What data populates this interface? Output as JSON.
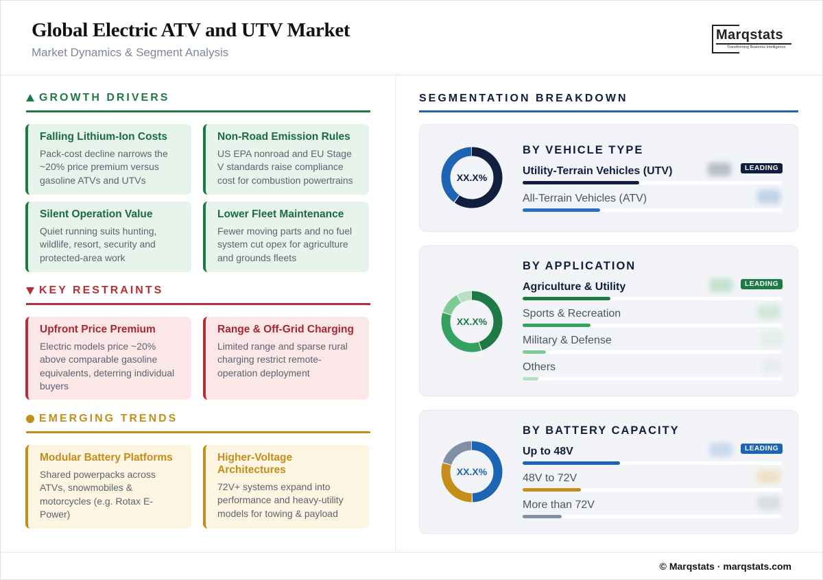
{
  "header": {
    "title": "Global Electric ATV and UTV Market",
    "subtitle": "Market Dynamics & Segment Analysis"
  },
  "logo": {
    "name": "Marqstats",
    "tagline": "Transforming Business Intelligence"
  },
  "drivers": {
    "heading": "GROWTH DRIVERS",
    "items": [
      {
        "title": "Falling Lithium-Ion Costs",
        "text": "Pack-cost decline narrows the ~20% price premium versus gasoline ATVs and UTVs"
      },
      {
        "title": "Non-Road Emission Rules",
        "text": "US EPA nonroad and EU Stage V standards raise compliance cost for combustion powertrains"
      },
      {
        "title": "Silent Operation Value",
        "text": "Quiet running suits hunting, wildlife, resort, security and protected-area work"
      },
      {
        "title": "Lower Fleet Maintenance",
        "text": "Fewer moving parts and no fuel system cut opex for agriculture and grounds fleets"
      }
    ]
  },
  "restraints": {
    "heading": "KEY RESTRAINTS",
    "items": [
      {
        "title": "Upfront Price Premium",
        "text": "Electric models price ~20% above comparable gasoline equivalents, deterring individual buyers"
      },
      {
        "title": "Range & Off-Grid Charging",
        "text": "Limited range and sparse rural charging restrict remote-operation deployment"
      }
    ]
  },
  "trends": {
    "heading": "EMERGING TRENDS",
    "items": [
      {
        "title": "Modular Battery Platforms",
        "text": "Shared powerpacks across ATVs, snowmobiles & motorcycles (e.g. Rotax E-Power)"
      },
      {
        "title": "Higher-Voltage Architectures",
        "text": "72V+ systems expand into performance and heavy-utility models for towing & payload"
      }
    ]
  },
  "segmentation": {
    "heading": "SEGMENTATION BREAKDOWN",
    "panels": [
      {
        "title": "BY VEHICLE TYPE",
        "center": "XX.X%",
        "colors": [
          "#0f1f3d",
          "#1e64b4"
        ],
        "rows": [
          {
            "label": "Utility-Terrain Vehicles (UTV)",
            "share": 0.6,
            "leading": true,
            "badge": "LEADING",
            "color": "#0f1f3d"
          },
          {
            "label": "All-Terrain Vehicles (ATV)",
            "share": 0.4,
            "leading": false,
            "color": "#2a6fc1"
          }
        ]
      },
      {
        "title": "BY APPLICATION",
        "center": "XX.X%",
        "colors": [
          "#1e7a45",
          "#34a15f",
          "#7fcb97",
          "#b7e0c4"
        ],
        "rows": [
          {
            "label": "Agriculture & Utility",
            "share": 0.45,
            "leading": true,
            "badge": "LEADING",
            "color": "#1e7a45"
          },
          {
            "label": "Sports & Recreation",
            "share": 0.35,
            "leading": false,
            "color": "#34a15f"
          },
          {
            "label": "Military & Defense",
            "share": 0.12,
            "leading": false,
            "color": "#7fcb97"
          },
          {
            "label": "Others",
            "share": 0.08,
            "leading": false,
            "color": "#b7e0c4"
          }
        ]
      },
      {
        "title": "BY BATTERY CAPACITY",
        "center": "XX.X%",
        "colors": [
          "#1e64b4",
          "#c58d1a",
          "#8190a5"
        ],
        "rows": [
          {
            "label": "Up to 48V",
            "share": 0.5,
            "leading": true,
            "badge": "LEADING",
            "color": "#1e64b4"
          },
          {
            "label": "48V to 72V",
            "share": 0.3,
            "leading": false,
            "color": "#c58d1a"
          },
          {
            "label": "More than 72V",
            "share": 0.2,
            "leading": false,
            "color": "#8190a5"
          }
        ]
      }
    ]
  },
  "footer": {
    "text": "© Marqstats · marqstats.com"
  }
}
